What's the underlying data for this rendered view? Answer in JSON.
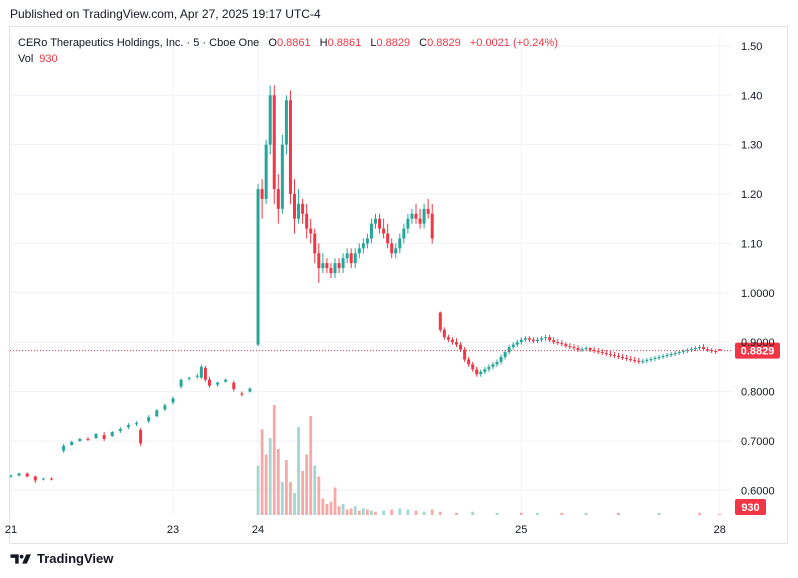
{
  "header": {
    "published": "Published on TradingView.com, Apr 27, 2025 19:17 UTC-4"
  },
  "legend": {
    "symbol": "CERo Therapeutics Holdings, Inc. · 5 · Cboe One",
    "o_label": "O",
    "o_value": "0.8861",
    "h_label": "H",
    "h_value": "0.8861",
    "l_label": "L",
    "l_value": "0.8829",
    "c_label": "C",
    "c_value": "0.8829",
    "change": "+0.0021 (+0.24%)",
    "vol_label": "Vol",
    "vol_value": "930"
  },
  "footer": {
    "brand": "TradingView"
  },
  "colors": {
    "up": "#26a69a",
    "down": "#f23645",
    "up_vol": "#a5d6d2",
    "down_vol": "#f7a9a7",
    "grid": "#f0f3fa",
    "text": "#131722"
  },
  "chart_data": {
    "type": "candlestick",
    "y_ticks": [
      "1.50",
      "1.40",
      "1.30",
      "1.20",
      "1.10",
      "1.0000",
      "0.9000",
      "0.8000",
      "0.7000",
      "0.6000"
    ],
    "y_tick_values": [
      1.5,
      1.4,
      1.3,
      1.2,
      1.1,
      1.0,
      0.9,
      0.8,
      0.7,
      0.6
    ],
    "ylim": [
      0.55,
      1.52
    ],
    "x_ticks": [
      {
        "label": "21",
        "index": 0
      },
      {
        "label": "23",
        "index": 40
      },
      {
        "label": "24",
        "index": 61
      },
      {
        "label": "25",
        "index": 126
      },
      {
        "label": "28",
        "index": 175
      }
    ],
    "n_bars": 176,
    "last_price_label": "0.8829",
    "last_price": 0.8829,
    "volume_label": "930",
    "candles": [
      [
        0,
        0.628,
        0.632,
        0.625,
        0.63
      ],
      [
        2,
        0.63,
        0.636,
        0.628,
        0.634
      ],
      [
        4,
        0.634,
        0.636,
        0.626,
        0.628
      ],
      [
        6,
        0.628,
        0.63,
        0.615,
        0.62
      ],
      [
        8,
        0.622,
        0.625,
        0.62,
        0.624
      ],
      [
        10,
        0.624,
        0.626,
        0.62,
        0.622
      ],
      [
        13,
        0.68,
        0.694,
        0.676,
        0.69
      ],
      [
        15,
        0.692,
        0.7,
        0.69,
        0.698
      ],
      [
        17,
        0.7,
        0.706,
        0.698,
        0.704
      ],
      [
        19,
        0.704,
        0.708,
        0.7,
        0.702
      ],
      [
        21,
        0.706,
        0.716,
        0.704,
        0.714
      ],
      [
        23,
        0.712,
        0.718,
        0.7,
        0.704
      ],
      [
        25,
        0.71,
        0.72,
        0.708,
        0.718
      ],
      [
        27,
        0.72,
        0.728,
        0.716,
        0.724
      ],
      [
        29,
        0.728,
        0.736,
        0.724,
        0.732
      ],
      [
        31,
        0.734,
        0.74,
        0.73,
        0.736
      ],
      [
        32,
        0.722,
        0.726,
        0.69,
        0.695
      ],
      [
        34,
        0.74,
        0.752,
        0.736,
        0.748
      ],
      [
        36,
        0.75,
        0.764,
        0.748,
        0.762
      ],
      [
        38,
        0.764,
        0.776,
        0.76,
        0.772
      ],
      [
        40,
        0.778,
        0.79,
        0.774,
        0.786
      ],
      [
        42,
        0.81,
        0.826,
        0.806,
        0.824
      ],
      [
        44,
        0.826,
        0.83,
        0.822,
        0.828
      ],
      [
        46,
        0.83,
        0.836,
        0.826,
        0.832
      ],
      [
        47,
        0.828,
        0.854,
        0.826,
        0.85
      ],
      [
        48,
        0.848,
        0.852,
        0.82,
        0.824
      ],
      [
        49,
        0.824,
        0.83,
        0.808,
        0.812
      ],
      [
        51,
        0.814,
        0.82,
        0.81,
        0.818
      ],
      [
        53,
        0.82,
        0.826,
        0.818,
        0.824
      ],
      [
        55,
        0.818,
        0.822,
        0.8,
        0.805
      ],
      [
        57,
        0.796,
        0.8,
        0.79,
        0.794
      ],
      [
        59,
        0.8,
        0.808,
        0.798,
        0.806
      ],
      [
        61,
        0.895,
        1.22,
        0.892,
        1.21
      ],
      [
        62,
        1.21,
        1.23,
        1.15,
        1.19
      ],
      [
        63,
        1.19,
        1.31,
        1.18,
        1.3
      ],
      [
        64,
        1.3,
        1.42,
        1.28,
        1.4
      ],
      [
        65,
        1.4,
        1.42,
        1.18,
        1.21
      ],
      [
        66,
        1.21,
        1.24,
        1.14,
        1.17
      ],
      [
        67,
        1.17,
        1.32,
        1.16,
        1.3
      ],
      [
        68,
        1.3,
        1.4,
        1.28,
        1.39
      ],
      [
        69,
        1.39,
        1.41,
        1.18,
        1.2
      ],
      [
        70,
        1.2,
        1.23,
        1.12,
        1.15
      ],
      [
        71,
        1.15,
        1.21,
        1.14,
        1.18
      ],
      [
        72,
        1.18,
        1.19,
        1.14,
        1.16
      ],
      [
        73,
        1.16,
        1.18,
        1.11,
        1.13
      ],
      [
        74,
        1.13,
        1.15,
        1.1,
        1.12
      ],
      [
        75,
        1.12,
        1.13,
        1.06,
        1.08
      ],
      [
        76,
        1.08,
        1.1,
        1.02,
        1.05
      ],
      [
        77,
        1.05,
        1.08,
        1.04,
        1.06
      ],
      [
        78,
        1.06,
        1.07,
        1.04,
        1.05
      ],
      [
        79,
        1.05,
        1.06,
        1.03,
        1.04
      ],
      [
        80,
        1.04,
        1.07,
        1.03,
        1.06
      ],
      [
        81,
        1.06,
        1.07,
        1.04,
        1.05
      ],
      [
        82,
        1.05,
        1.08,
        1.04,
        1.07
      ],
      [
        83,
        1.07,
        1.09,
        1.06,
        1.08
      ],
      [
        84,
        1.08,
        1.09,
        1.05,
        1.06
      ],
      [
        85,
        1.06,
        1.09,
        1.05,
        1.08
      ],
      [
        86,
        1.08,
        1.1,
        1.07,
        1.09
      ],
      [
        87,
        1.09,
        1.11,
        1.08,
        1.1
      ],
      [
        88,
        1.1,
        1.12,
        1.09,
        1.11
      ],
      [
        89,
        1.11,
        1.15,
        1.1,
        1.14
      ],
      [
        90,
        1.14,
        1.16,
        1.13,
        1.15
      ],
      [
        91,
        1.15,
        1.16,
        1.12,
        1.13
      ],
      [
        92,
        1.13,
        1.15,
        1.11,
        1.12
      ],
      [
        93,
        1.12,
        1.14,
        1.09,
        1.1
      ],
      [
        94,
        1.1,
        1.11,
        1.07,
        1.08
      ],
      [
        95,
        1.08,
        1.1,
        1.07,
        1.09
      ],
      [
        96,
        1.09,
        1.12,
        1.08,
        1.11
      ],
      [
        97,
        1.11,
        1.14,
        1.1,
        1.13
      ],
      [
        98,
        1.13,
        1.16,
        1.12,
        1.15
      ],
      [
        99,
        1.15,
        1.17,
        1.14,
        1.16
      ],
      [
        100,
        1.16,
        1.18,
        1.14,
        1.15
      ],
      [
        101,
        1.15,
        1.17,
        1.13,
        1.14
      ],
      [
        102,
        1.14,
        1.18,
        1.13,
        1.17
      ],
      [
        103,
        1.17,
        1.19,
        1.15,
        1.16
      ],
      [
        104,
        1.16,
        1.18,
        1.1,
        1.11
      ],
      [
        106,
        0.96,
        0.962,
        0.92,
        0.925
      ],
      [
        107,
        0.925,
        0.93,
        0.905,
        0.91
      ],
      [
        108,
        0.91,
        0.915,
        0.9,
        0.905
      ],
      [
        109,
        0.905,
        0.91,
        0.895,
        0.9
      ],
      [
        110,
        0.9,
        0.908,
        0.89,
        0.895
      ],
      [
        111,
        0.895,
        0.9,
        0.88,
        0.885
      ],
      [
        112,
        0.885,
        0.89,
        0.86,
        0.865
      ],
      [
        113,
        0.865,
        0.87,
        0.85,
        0.855
      ],
      [
        114,
        0.855,
        0.86,
        0.84,
        0.845
      ],
      [
        115,
        0.845,
        0.85,
        0.83,
        0.835
      ],
      [
        116,
        0.835,
        0.845,
        0.83,
        0.84
      ],
      [
        117,
        0.84,
        0.85,
        0.835,
        0.845
      ],
      [
        118,
        0.845,
        0.855,
        0.84,
        0.85
      ],
      [
        119,
        0.85,
        0.86,
        0.845,
        0.855
      ],
      [
        120,
        0.855,
        0.865,
        0.85,
        0.86
      ],
      [
        121,
        0.86,
        0.875,
        0.855,
        0.87
      ],
      [
        122,
        0.87,
        0.885,
        0.865,
        0.88
      ],
      [
        123,
        0.88,
        0.895,
        0.875,
        0.89
      ],
      [
        124,
        0.89,
        0.9,
        0.885,
        0.895
      ],
      [
        125,
        0.895,
        0.905,
        0.89,
        0.9
      ],
      [
        126,
        0.9,
        0.91,
        0.895,
        0.905
      ],
      [
        127,
        0.905,
        0.912,
        0.9,
        0.908
      ],
      [
        128,
        0.908,
        0.912,
        0.9,
        0.905
      ],
      [
        129,
        0.905,
        0.91,
        0.898,
        0.902
      ],
      [
        130,
        0.902,
        0.91,
        0.898,
        0.905
      ],
      [
        131,
        0.905,
        0.912,
        0.9,
        0.908
      ],
      [
        132,
        0.908,
        0.915,
        0.902,
        0.91
      ],
      [
        133,
        0.91,
        0.915,
        0.9,
        0.904
      ],
      [
        134,
        0.904,
        0.91,
        0.896,
        0.9
      ],
      [
        135,
        0.9,
        0.906,
        0.894,
        0.898
      ],
      [
        136,
        0.898,
        0.904,
        0.892,
        0.896
      ],
      [
        137,
        0.896,
        0.9,
        0.888,
        0.892
      ],
      [
        138,
        0.892,
        0.898,
        0.886,
        0.89
      ],
      [
        139,
        0.89,
        0.896,
        0.884,
        0.888
      ],
      [
        140,
        0.888,
        0.894,
        0.88,
        0.884
      ],
      [
        141,
        0.884,
        0.89,
        0.88,
        0.886
      ],
      [
        142,
        0.886,
        0.892,
        0.882,
        0.888
      ],
      [
        143,
        0.888,
        0.89,
        0.88,
        0.884
      ],
      [
        144,
        0.884,
        0.89,
        0.878,
        0.882
      ],
      [
        145,
        0.882,
        0.888,
        0.876,
        0.88
      ],
      [
        146,
        0.88,
        0.886,
        0.874,
        0.878
      ],
      [
        147,
        0.878,
        0.884,
        0.872,
        0.876
      ],
      [
        148,
        0.876,
        0.882,
        0.87,
        0.874
      ],
      [
        149,
        0.874,
        0.88,
        0.868,
        0.872
      ],
      [
        150,
        0.872,
        0.878,
        0.866,
        0.87
      ],
      [
        151,
        0.87,
        0.876,
        0.864,
        0.868
      ],
      [
        152,
        0.868,
        0.874,
        0.862,
        0.866
      ],
      [
        153,
        0.866,
        0.872,
        0.86,
        0.864
      ],
      [
        154,
        0.864,
        0.87,
        0.858,
        0.862
      ],
      [
        155,
        0.862,
        0.868,
        0.856,
        0.86
      ],
      [
        156,
        0.86,
        0.866,
        0.856,
        0.862
      ],
      [
        157,
        0.862,
        0.868,
        0.858,
        0.864
      ],
      [
        158,
        0.864,
        0.87,
        0.86,
        0.866
      ],
      [
        159,
        0.866,
        0.872,
        0.862,
        0.868
      ],
      [
        160,
        0.868,
        0.874,
        0.864,
        0.87
      ],
      [
        161,
        0.87,
        0.876,
        0.866,
        0.872
      ],
      [
        162,
        0.872,
        0.878,
        0.868,
        0.874
      ],
      [
        163,
        0.874,
        0.88,
        0.87,
        0.876
      ],
      [
        164,
        0.876,
        0.882,
        0.872,
        0.878
      ],
      [
        165,
        0.878,
        0.884,
        0.874,
        0.88
      ],
      [
        166,
        0.88,
        0.886,
        0.876,
        0.882
      ],
      [
        167,
        0.882,
        0.888,
        0.878,
        0.884
      ],
      [
        168,
        0.884,
        0.89,
        0.88,
        0.886
      ],
      [
        169,
        0.886,
        0.892,
        0.882,
        0.888
      ],
      [
        170,
        0.888,
        0.894,
        0.884,
        0.89
      ],
      [
        171,
        0.89,
        0.896,
        0.884,
        0.886
      ],
      [
        172,
        0.886,
        0.89,
        0.88,
        0.884
      ],
      [
        173,
        0.884,
        0.888,
        0.878,
        0.882
      ],
      [
        174,
        0.882,
        0.886,
        0.876,
        0.88
      ],
      [
        175,
        0.8861,
        0.8861,
        0.8829,
        0.8829
      ]
    ],
    "volumes": [
      [
        61,
        0.45,
        0
      ],
      [
        62,
        0.78,
        1
      ],
      [
        63,
        0.55,
        1
      ],
      [
        64,
        0.7,
        0
      ],
      [
        65,
        1.0,
        1
      ],
      [
        66,
        0.6,
        1
      ],
      [
        67,
        0.3,
        0
      ],
      [
        68,
        0.5,
        1
      ],
      [
        69,
        0.3,
        1
      ],
      [
        70,
        0.2,
        0
      ],
      [
        71,
        0.8,
        0
      ],
      [
        72,
        0.4,
        1
      ],
      [
        73,
        0.55,
        1
      ],
      [
        74,
        0.9,
        1
      ],
      [
        75,
        0.45,
        0
      ],
      [
        76,
        0.35,
        1
      ],
      [
        77,
        0.15,
        1
      ],
      [
        78,
        0.1,
        1
      ],
      [
        79,
        0.12,
        1
      ],
      [
        80,
        0.25,
        1
      ],
      [
        81,
        0.08,
        1
      ],
      [
        82,
        0.1,
        0
      ],
      [
        83,
        0.05,
        1
      ],
      [
        84,
        0.06,
        1
      ],
      [
        85,
        0.08,
        0
      ],
      [
        86,
        0.04,
        1
      ],
      [
        87,
        0.06,
        0
      ],
      [
        88,
        0.05,
        1
      ],
      [
        89,
        0.04,
        0
      ],
      [
        90,
        0.03,
        1
      ],
      [
        92,
        0.04,
        0
      ],
      [
        94,
        0.05,
        1
      ],
      [
        96,
        0.06,
        0
      ],
      [
        98,
        0.05,
        0
      ],
      [
        100,
        0.04,
        1
      ],
      [
        102,
        0.03,
        0
      ],
      [
        104,
        0.05,
        1
      ],
      [
        106,
        0.03,
        1
      ],
      [
        110,
        0.02,
        1
      ],
      [
        114,
        0.03,
        0
      ],
      [
        120,
        0.02,
        0
      ],
      [
        126,
        0.02,
        1
      ],
      [
        130,
        0.02,
        0
      ],
      [
        136,
        0.02,
        1
      ],
      [
        142,
        0.02,
        0
      ],
      [
        150,
        0.02,
        1
      ],
      [
        160,
        0.02,
        0
      ],
      [
        170,
        0.02,
        1
      ],
      [
        175,
        0.01,
        1
      ]
    ]
  }
}
